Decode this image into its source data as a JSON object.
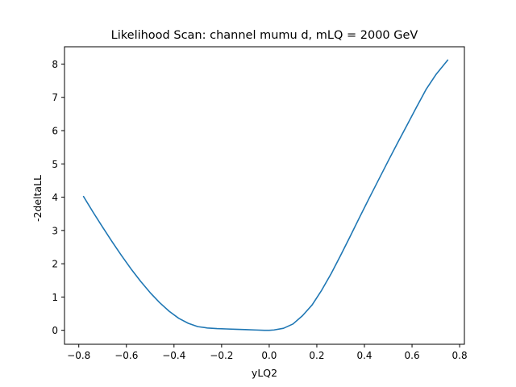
{
  "chart_data": {
    "type": "line",
    "title": "Likelihood Scan: channel mumu d, mLQ = 2000 GeV",
    "xlabel": "yLQ2",
    "ylabel": "-2deltaLL",
    "xlim": [
      -0.86,
      0.82
    ],
    "ylim": [
      -0.42,
      8.52
    ],
    "xticks": [
      -0.8,
      -0.6,
      -0.4,
      -0.2,
      0.0,
      0.2,
      0.4,
      0.6,
      0.8
    ],
    "xtick_labels": [
      "−0.8",
      "−0.6",
      "−0.4",
      "−0.2",
      "0.0",
      "0.2",
      "0.4",
      "0.6",
      "0.8"
    ],
    "yticks": [
      0,
      1,
      2,
      3,
      4,
      5,
      6,
      7,
      8
    ],
    "ytick_labels": [
      "0",
      "1",
      "2",
      "3",
      "4",
      "5",
      "6",
      "7",
      "8"
    ],
    "grid": false,
    "line_color": "#1f77b4",
    "series": [
      {
        "x": [
          -0.78,
          -0.74,
          -0.7,
          -0.66,
          -0.62,
          -0.58,
          -0.54,
          -0.5,
          -0.46,
          -0.42,
          -0.38,
          -0.34,
          -0.3,
          -0.26,
          -0.22,
          -0.18,
          -0.14,
          -0.1,
          -0.06,
          -0.02,
          0.0,
          0.02,
          0.06,
          0.1,
          0.14,
          0.18,
          0.22,
          0.26,
          0.3,
          0.34,
          0.38,
          0.42,
          0.46,
          0.5,
          0.54,
          0.58,
          0.62,
          0.66,
          0.7,
          0.75
        ],
        "y": [
          4.02,
          3.55,
          3.1,
          2.66,
          2.24,
          1.84,
          1.47,
          1.13,
          0.83,
          0.57,
          0.36,
          0.21,
          0.11,
          0.07,
          0.05,
          0.04,
          0.03,
          0.02,
          0.01,
          0.0,
          0.0,
          0.01,
          0.06,
          0.19,
          0.44,
          0.76,
          1.2,
          1.7,
          2.25,
          2.82,
          3.4,
          3.97,
          4.53,
          5.09,
          5.64,
          6.18,
          6.72,
          7.25,
          7.68,
          8.12
        ]
      }
    ]
  }
}
